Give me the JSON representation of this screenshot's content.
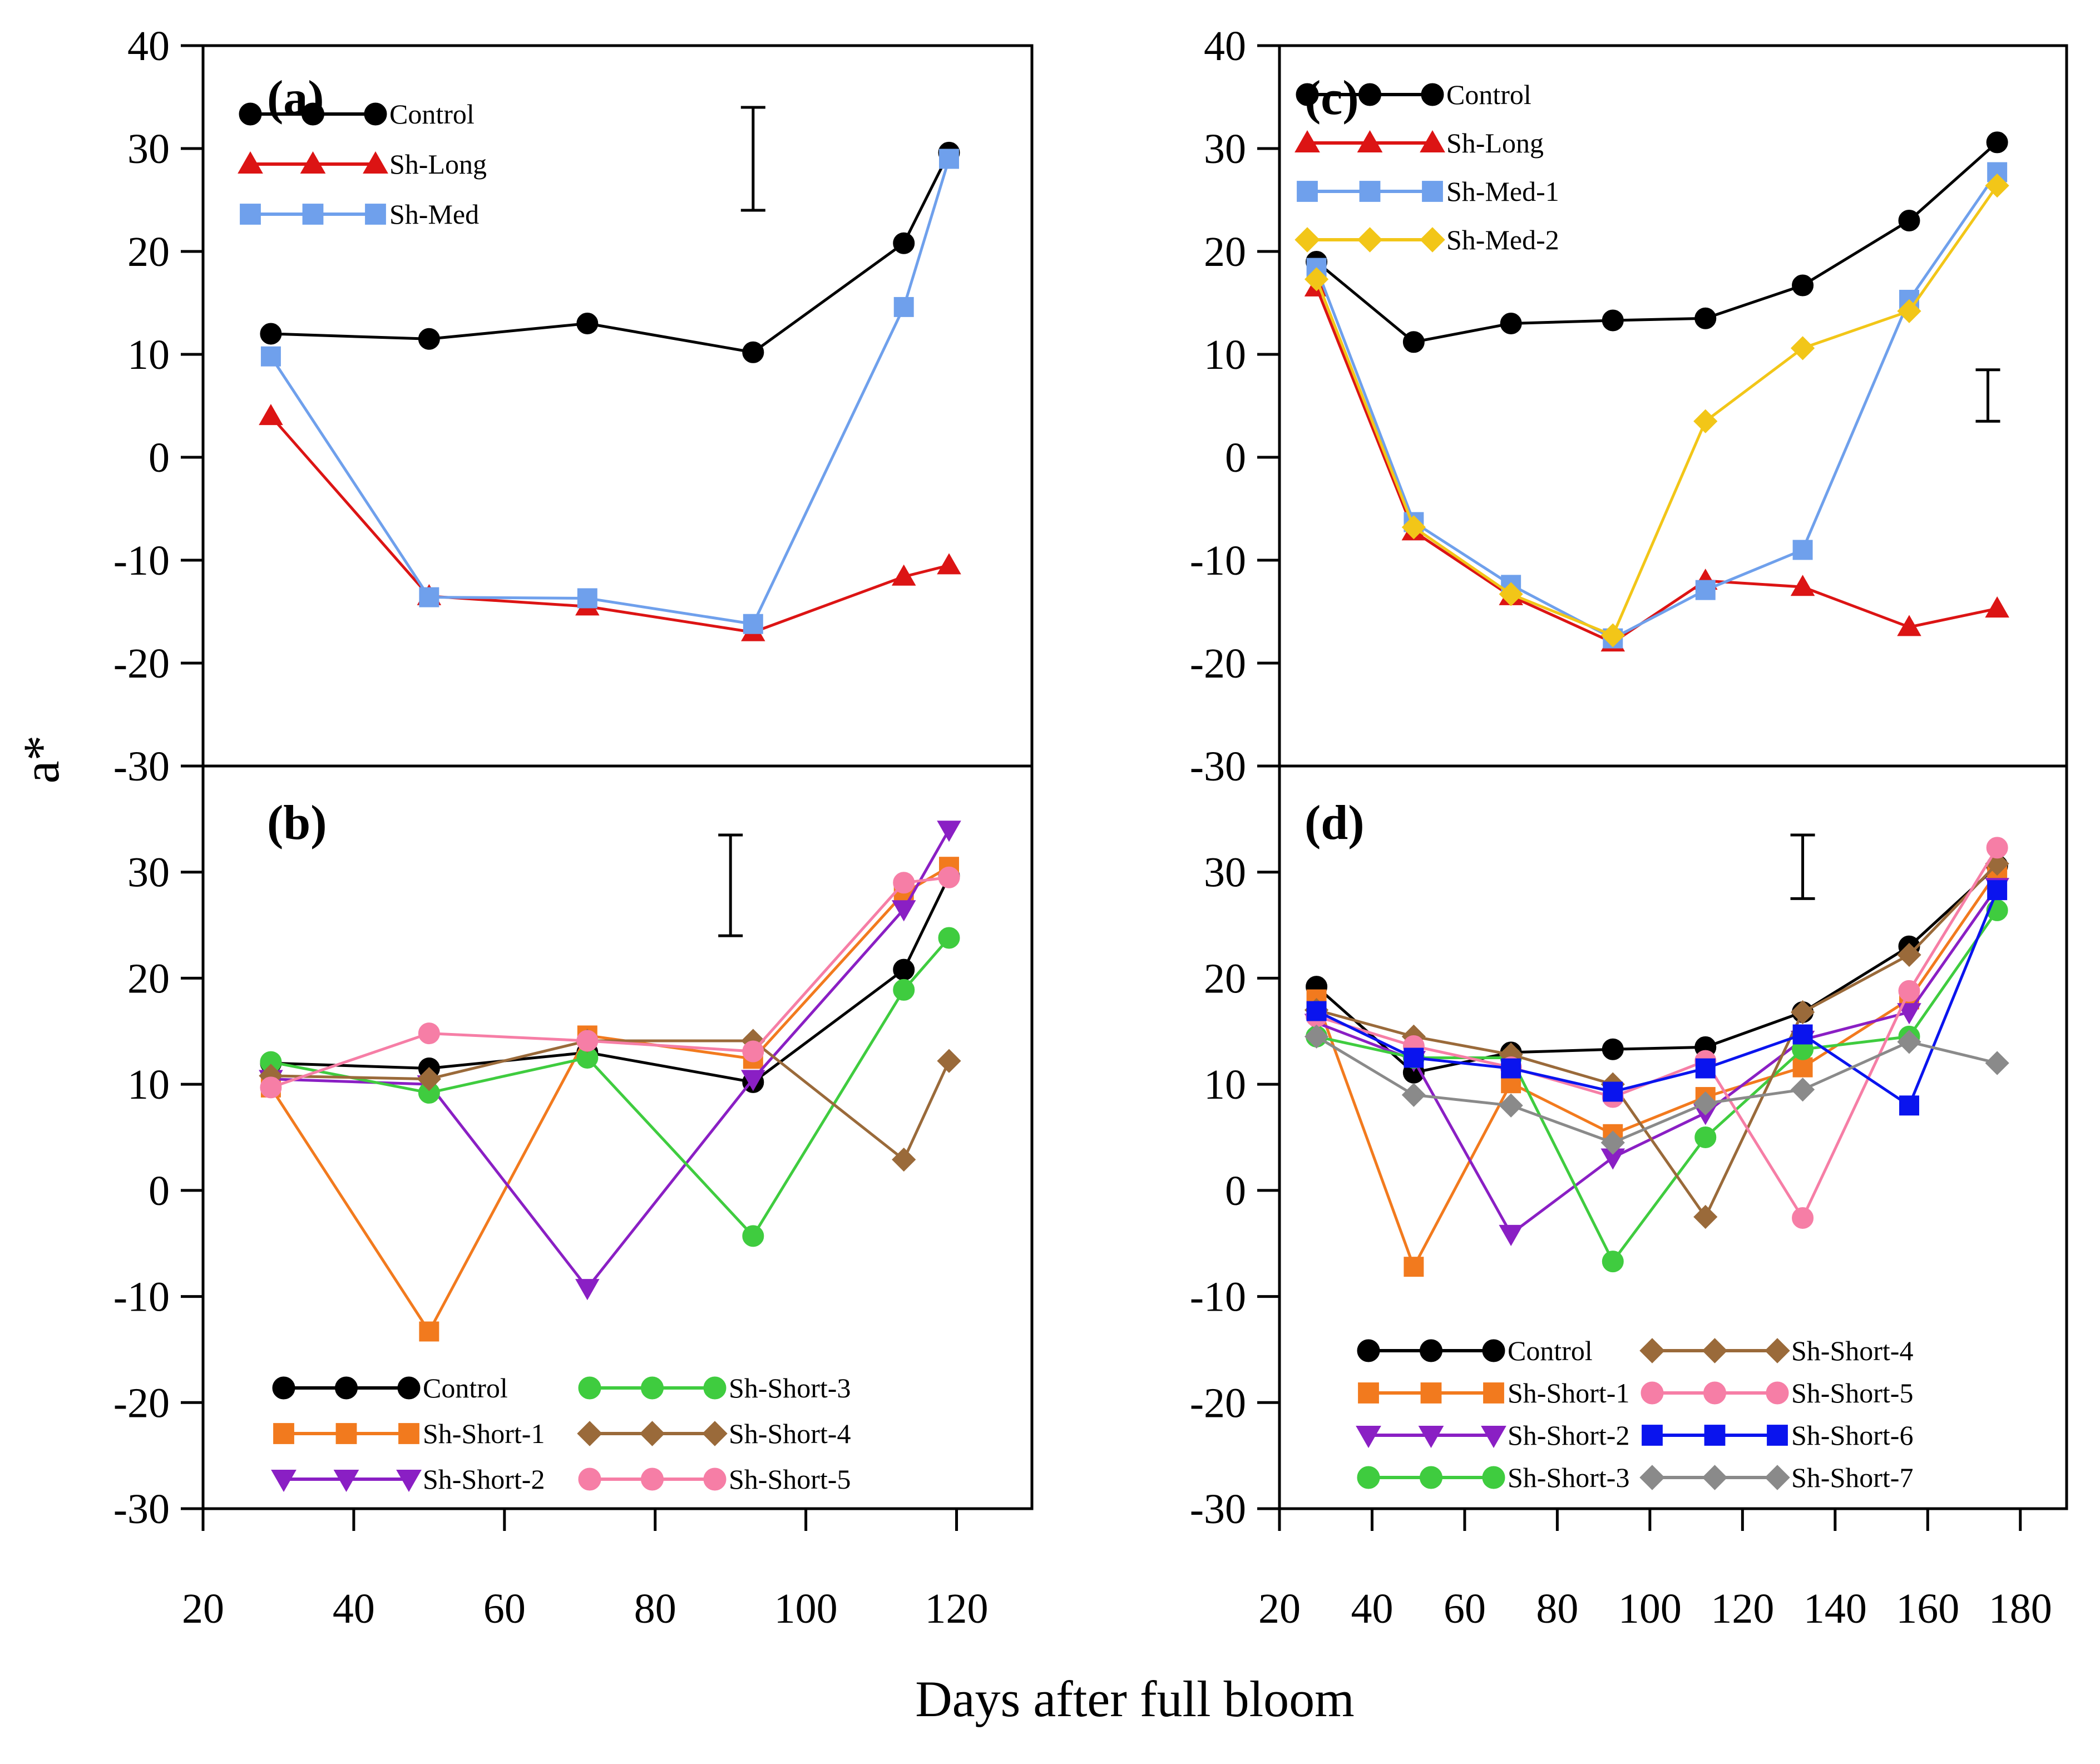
{
  "figure": {
    "ylabel": "a*",
    "xlabel": "Days after full bloom"
  },
  "colors": {
    "Control": "#000000",
    "Sh-Long": "#dc1414",
    "Sh-Med": "#6fa0ec",
    "Sh-Med-1": "#6fa0ec",
    "Sh-Med-2": "#f2c618",
    "Sh-Short-1": "#f27a1e",
    "Sh-Short-2": "#8a1fc4",
    "Sh-Short-3": "#3fcc3f",
    "Sh-Short-4": "#9a6a3a",
    "Sh-Short-5": "#f67ea6",
    "Sh-Short-6": "#0a14ee",
    "Sh-Short-7": "#8a8a8a"
  },
  "chart_data": [
    {
      "id": "a",
      "panel_label": "(a)",
      "type": "line",
      "xlim": [
        20,
        130
      ],
      "ylim": [
        -30,
        40
      ],
      "yticks": [
        40,
        30,
        20,
        10,
        0,
        -10,
        -20,
        -30
      ],
      "xticks": [],
      "error_bar": {
        "x": 93,
        "y_low": 24,
        "y_high": 34
      },
      "legend_columns": 1,
      "series": [
        {
          "name": "Control",
          "marker": "circle",
          "x": [
            29,
            50,
            71,
            93,
            113,
            119
          ],
          "values": [
            12,
            11.5,
            13,
            10.2,
            20.8,
            29.6
          ]
        },
        {
          "name": "Sh-Long",
          "marker": "triangle-up",
          "x": [
            29,
            50,
            71,
            93,
            113,
            119
          ],
          "values": [
            4,
            -13.5,
            -14.5,
            -17,
            -11.6,
            -10.5
          ]
        },
        {
          "name": "Sh-Med",
          "marker": "square",
          "x": [
            29,
            50,
            71,
            93,
            113,
            119
          ],
          "values": [
            9.8,
            -13.6,
            -13.7,
            -16.2,
            14.6,
            29
          ]
        }
      ]
    },
    {
      "id": "b",
      "panel_label": "(b)",
      "type": "line",
      "xlim": [
        20,
        130
      ],
      "ylim": [
        -30,
        40
      ],
      "yticks": [
        30,
        20,
        10,
        0,
        -10,
        -20,
        -30
      ],
      "xticks": [
        20,
        40,
        60,
        80,
        100,
        120
      ],
      "error_bar": {
        "x": 90,
        "y_low": 24,
        "y_high": 33.5
      },
      "legend_columns": 2,
      "series": [
        {
          "name": "Control",
          "marker": "circle",
          "x": [
            29,
            50,
            71,
            93,
            113,
            119
          ],
          "values": [
            12,
            11.5,
            13,
            10.2,
            20.8,
            29.6
          ]
        },
        {
          "name": "Sh-Short-1",
          "marker": "square",
          "x": [
            29,
            50,
            71,
            93,
            113,
            119
          ],
          "values": [
            9.7,
            -13.3,
            14.6,
            12.4,
            28,
            30.5
          ]
        },
        {
          "name": "Sh-Short-2",
          "marker": "triangle-down",
          "x": [
            29,
            50,
            71,
            93,
            113,
            119
          ],
          "values": [
            10.5,
            10,
            -9.2,
            10.5,
            26.5,
            34
          ]
        },
        {
          "name": "Sh-Short-3",
          "marker": "circle",
          "x": [
            29,
            50,
            71,
            93,
            113,
            119
          ],
          "values": [
            12.1,
            9.2,
            12.5,
            -4.3,
            18.9,
            23.8
          ]
        },
        {
          "name": "Sh-Short-4",
          "marker": "diamond",
          "x": [
            29,
            50,
            71,
            93,
            113,
            119
          ],
          "values": [
            10.8,
            10.5,
            14.1,
            14.1,
            2.9,
            12.2
          ]
        },
        {
          "name": "Sh-Short-5",
          "marker": "circle",
          "x": [
            29,
            50,
            71,
            93,
            113,
            119
          ],
          "values": [
            9.7,
            14.8,
            14.1,
            13.1,
            29,
            29.5
          ]
        }
      ]
    },
    {
      "id": "c",
      "panel_label": "(c)",
      "type": "line",
      "xlim": [
        20,
        190
      ],
      "ylim": [
        -30,
        40
      ],
      "yticks": [
        40,
        30,
        20,
        10,
        0,
        -10,
        -20,
        -30
      ],
      "xticks": [],
      "error_bar": {
        "x": 173,
        "y_low": 3.5,
        "y_high": 8.5
      },
      "legend_columns": 1,
      "series": [
        {
          "name": "Control",
          "marker": "circle",
          "x": [
            28,
            49,
            70,
            92,
            112,
            133,
            156,
            175
          ],
          "values": [
            19,
            11.2,
            13,
            13.3,
            13.5,
            16.7,
            23,
            30.6
          ]
        },
        {
          "name": "Sh-Long",
          "marker": "triangle-up",
          "x": [
            28,
            49,
            70,
            92,
            112,
            133,
            156,
            175
          ],
          "values": [
            16.5,
            -7.2,
            -13.5,
            -18,
            -12,
            -12.6,
            -16.5,
            -14.7
          ]
        },
        {
          "name": "Sh-Med-1",
          "marker": "square",
          "x": [
            28,
            49,
            70,
            92,
            112,
            133,
            156,
            175
          ],
          "values": [
            18.4,
            -6.3,
            -12.4,
            -17.6,
            -12.9,
            -9,
            15.3,
            27.7
          ]
        },
        {
          "name": "Sh-Med-2",
          "marker": "diamond",
          "x": [
            28,
            49,
            70,
            92,
            112,
            133,
            156,
            175
          ],
          "values": [
            17.3,
            -6.8,
            -13.3,
            -17.3,
            3.5,
            10.6,
            14.2,
            26.4
          ]
        }
      ]
    },
    {
      "id": "d",
      "panel_label": "(d)",
      "type": "line",
      "xlim": [
        20,
        190
      ],
      "ylim": [
        -30,
        40
      ],
      "yticks": [
        30,
        20,
        10,
        0,
        -10,
        -20,
        -30
      ],
      "xticks": [
        20,
        40,
        60,
        80,
        100,
        120,
        140,
        160,
        180
      ],
      "error_bar": {
        "x": 133,
        "y_low": 27.5,
        "y_high": 33.5
      },
      "legend_columns": 2,
      "series": [
        {
          "name": "Control",
          "marker": "circle",
          "x": [
            28,
            49,
            70,
            92,
            112,
            133,
            156,
            175
          ],
          "values": [
            19.2,
            11.1,
            13,
            13.3,
            13.5,
            16.8,
            23,
            30.6
          ]
        },
        {
          "name": "Sh-Short-1",
          "marker": "square",
          "x": [
            28,
            49,
            70,
            92,
            112,
            133,
            156,
            175
          ],
          "values": [
            18,
            -7.2,
            10.1,
            5.3,
            8.8,
            11.6,
            18,
            30
          ]
        },
        {
          "name": "Sh-Short-2",
          "marker": "triangle-down",
          "x": [
            28,
            49,
            70,
            92,
            112,
            133,
            156,
            175
          ],
          "values": [
            15.8,
            12.3,
            -4.1,
            3.1,
            7.3,
            14.2,
            16.8,
            28.6
          ]
        },
        {
          "name": "Sh-Short-3",
          "marker": "circle",
          "x": [
            28,
            49,
            70,
            92,
            112,
            133,
            156,
            175
          ],
          "values": [
            14.5,
            12.5,
            12.5,
            -6.7,
            5,
            13.3,
            14.5,
            26.4
          ]
        },
        {
          "name": "Sh-Short-4",
          "marker": "diamond",
          "x": [
            28,
            49,
            70,
            92,
            112,
            133,
            156,
            175
          ],
          "values": [
            17,
            14.5,
            12.8,
            10,
            -2.5,
            16.8,
            22.2,
            30.8
          ]
        },
        {
          "name": "Sh-Short-5",
          "marker": "circle",
          "x": [
            28,
            49,
            70,
            92,
            112,
            133,
            156,
            175
          ],
          "values": [
            16.4,
            13.6,
            11.6,
            8.8,
            12.2,
            -2.6,
            18.8,
            32.3
          ]
        },
        {
          "name": "Sh-Short-6",
          "marker": "square",
          "x": [
            28,
            49,
            70,
            92,
            112,
            133,
            156,
            175
          ],
          "values": [
            16.9,
            12.5,
            11.5,
            9.3,
            11.5,
            14.7,
            8,
            28.3
          ]
        },
        {
          "name": "Sh-Short-7",
          "marker": "diamond",
          "x": [
            28,
            49,
            70,
            92,
            112,
            133,
            156,
            175
          ],
          "values": [
            14.5,
            9,
            8,
            4.5,
            8.2,
            9.5,
            14,
            12
          ]
        }
      ]
    }
  ]
}
